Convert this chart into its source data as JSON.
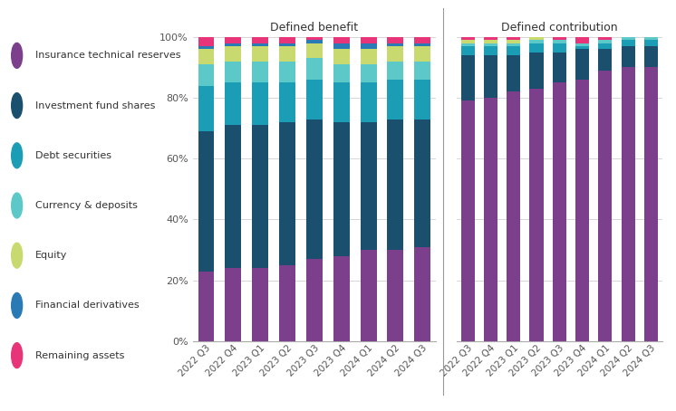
{
  "categories": [
    "2022 Q3",
    "2022 Q4",
    "2023 Q1",
    "2023 Q2",
    "2023 Q3",
    "2023 Q4",
    "2024 Q1",
    "2024 Q2",
    "2024 Q3"
  ],
  "colors": {
    "insurance": "#7b3f8c",
    "investment": "#1a506e",
    "debt": "#1a9db5",
    "currency": "#5cc8c8",
    "equity": "#c8d96f",
    "financial_deriv": "#2a7ab5",
    "remaining": "#e8357a"
  },
  "legend_labels": [
    "Insurance technical reserves",
    "Investment fund shares",
    "Debt securities",
    "Currency & deposits",
    "Equity",
    "Financial derivatives",
    "Remaining assets"
  ],
  "defined_benefit": {
    "insurance": [
      23,
      24,
      24,
      25,
      27,
      28,
      30,
      30,
      31
    ],
    "investment": [
      46,
      47,
      47,
      47,
      46,
      44,
      42,
      43,
      42
    ],
    "debt": [
      15,
      14,
      14,
      13,
      13,
      13,
      13,
      13,
      13
    ],
    "currency": [
      7,
      7,
      7,
      7,
      7,
      6,
      6,
      6,
      6
    ],
    "equity": [
      5,
      5,
      5,
      5,
      5,
      5,
      5,
      5,
      5
    ],
    "financial_deriv": [
      1,
      1,
      1,
      1,
      1,
      2,
      2,
      1,
      1
    ],
    "remaining": [
      3,
      2,
      2,
      2,
      1,
      2,
      2,
      2,
      2
    ]
  },
  "defined_contribution": {
    "insurance": [
      79,
      80,
      82,
      83,
      85,
      86,
      89,
      90,
      90
    ],
    "investment": [
      15,
      14,
      12,
      12,
      10,
      10,
      7,
      7,
      7
    ],
    "debt": [
      3,
      3,
      3,
      3,
      3,
      1,
      2,
      2,
      2
    ],
    "currency": [
      1,
      1,
      1,
      1,
      1,
      1,
      1,
      1,
      1
    ],
    "equity": [
      1,
      1,
      1,
      1,
      0,
      0,
      0,
      0,
      0
    ],
    "financial_deriv": [
      0,
      0,
      0,
      0,
      0,
      0,
      0,
      0,
      0
    ],
    "remaining": [
      1,
      1,
      1,
      0,
      1,
      2,
      1,
      0,
      0
    ]
  },
  "title_db": "Defined benefit",
  "title_dc": "Defined contribution",
  "background_color": "#ffffff",
  "grid_color": "#d0d0d0",
  "yticks": [
    0,
    20,
    40,
    60,
    80,
    100
  ],
  "ytick_labels": [
    "0%",
    "20%",
    "40%",
    "60%",
    "80%",
    "100%"
  ]
}
